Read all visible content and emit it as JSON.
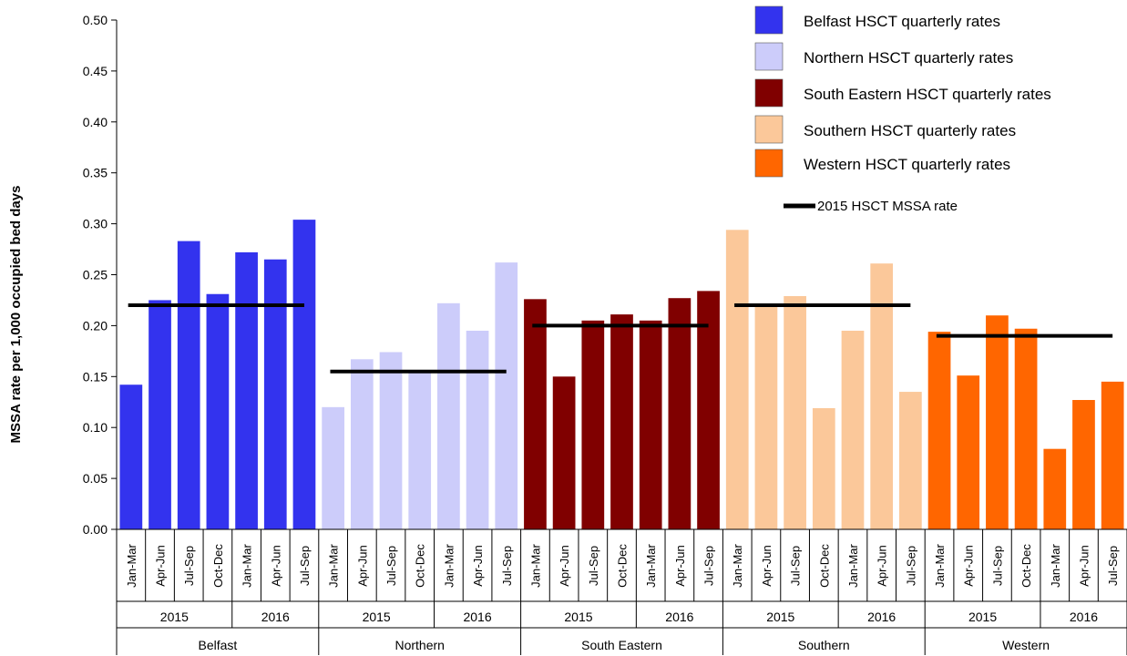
{
  "chart_data": {
    "type": "bar",
    "xlabel": "",
    "ylabel": "MSSA rate per 1,000  occupied bed days",
    "ylim": [
      0,
      0.5
    ],
    "yticks": [
      "0.00",
      "0.05",
      "0.10",
      "0.15",
      "0.20",
      "0.25",
      "0.30",
      "0.35",
      "0.40",
      "0.45",
      "0.50"
    ],
    "quarters": [
      "Jan-Mar",
      "Apr-Jun",
      "Jul-Sep",
      "Oct-Dec",
      "Jan-Mar",
      "Apr-Jun",
      "Jul-Sep"
    ],
    "years": [
      "2015",
      "2016"
    ],
    "groups": [
      {
        "name": "Belfast",
        "legend": "Belfast  HSCT quarterly rates",
        "color": "#3333ee",
        "values": [
          0.142,
          0.225,
          0.283,
          0.231,
          0.272,
          0.265,
          0.304
        ],
        "rate_2015": 0.22
      },
      {
        "name": "Northern",
        "legend": "Northern  HSCT quarterly rates",
        "color": "#ccccfa",
        "values": [
          0.12,
          0.167,
          0.174,
          0.155,
          0.222,
          0.195,
          0.262
        ],
        "rate_2015": 0.155
      },
      {
        "name": "South Eastern",
        "legend": "South Eastern HSCT quarterly rates",
        "color": "#800000",
        "values": [
          0.226,
          0.15,
          0.205,
          0.211,
          0.205,
          0.227,
          0.234
        ],
        "rate_2015": 0.2
      },
      {
        "name": "Southern",
        "legend": "Southern  HSCT quarterly rates",
        "color": "#fbc89a",
        "values": [
          0.294,
          0.221,
          0.229,
          0.119,
          0.195,
          0.261,
          0.135
        ],
        "rate_2015": 0.22
      },
      {
        "name": "Western",
        "legend": "Western  HSCT quarterly rates",
        "color": "#ff6600",
        "values": [
          0.194,
          0.151,
          0.21,
          0.197,
          0.079,
          0.127,
          0.145
        ],
        "rate_2015": 0.19
      }
    ],
    "line_series_label": "2015 HSCT MSSA rate",
    "line_color": "#000000",
    "legend_position": "top-right",
    "grid": false
  }
}
